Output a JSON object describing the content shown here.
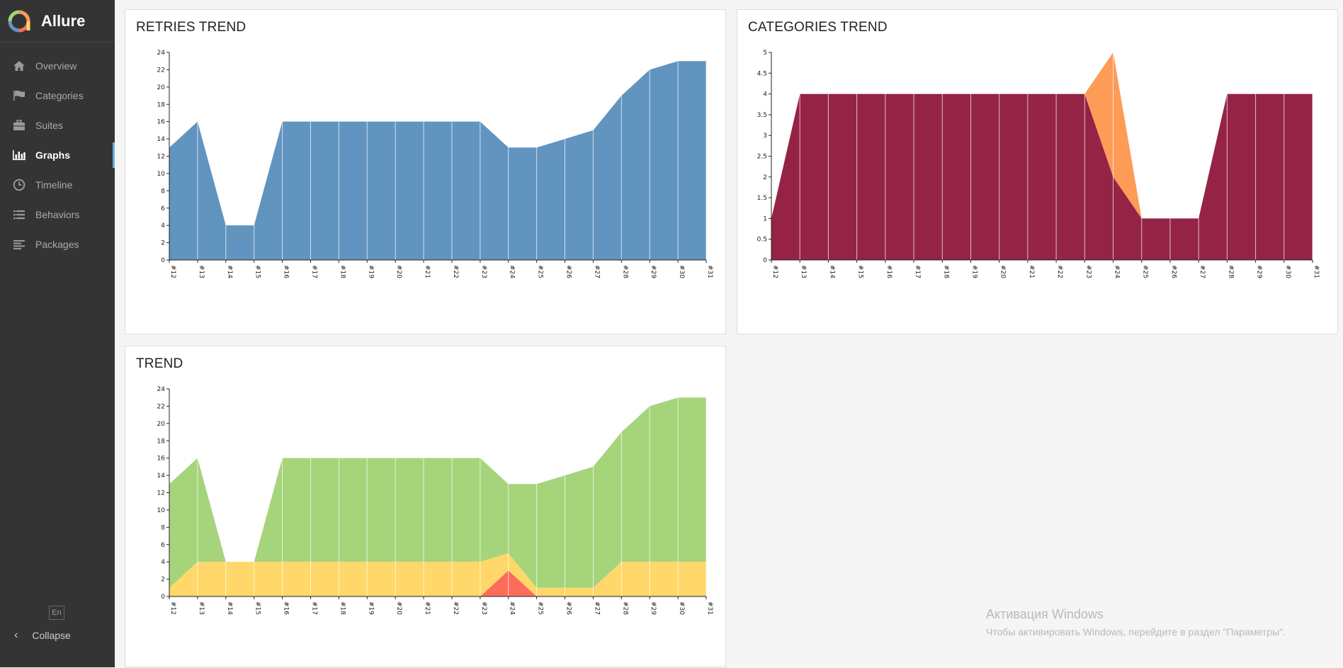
{
  "app": {
    "name": "Allure"
  },
  "sidebar": {
    "items": [
      {
        "label": "Overview",
        "icon": "home-icon"
      },
      {
        "label": "Categories",
        "icon": "flag-icon"
      },
      {
        "label": "Suites",
        "icon": "briefcase-icon"
      },
      {
        "label": "Graphs",
        "icon": "bar-chart-icon",
        "active": true
      },
      {
        "label": "Timeline",
        "icon": "clock-icon"
      },
      {
        "label": "Behaviors",
        "icon": "list-icon"
      },
      {
        "label": "Packages",
        "icon": "align-left-icon"
      }
    ],
    "language": "En",
    "collapse_label": "Collapse"
  },
  "colors": {
    "sidebar_bg": "#343434",
    "active_accent": "#6aaedc",
    "retries": "#6195c0",
    "category_maroon": "#952345",
    "category_orange": "#fd9b57",
    "passed": "#a6d47b",
    "broken": "#ffd76a",
    "failed": "#fb6c5b"
  },
  "watermark": {
    "title": "Активация Windows",
    "subtitle": "Чтобы активировать Windows, перейдите в раздел \"Параметры\"."
  },
  "chart_data": [
    {
      "type": "area",
      "title": "RETRIES TREND",
      "x": [
        "#12",
        "#13",
        "#14",
        "#15",
        "#16",
        "#17",
        "#18",
        "#19",
        "#20",
        "#21",
        "#22",
        "#23",
        "#24",
        "#25",
        "#26",
        "#27",
        "#28",
        "#29",
        "#30",
        "#31"
      ],
      "ylim": [
        0,
        24
      ],
      "yticks": [
        "0",
        "2",
        "4",
        "6",
        "8",
        "10",
        "12",
        "14",
        "16",
        "18",
        "20",
        "22",
        "24"
      ],
      "series": [
        {
          "values": [
            13,
            16,
            4,
            4,
            16,
            16,
            16,
            16,
            16,
            16,
            16,
            16,
            13,
            13,
            14,
            15,
            19,
            22,
            23,
            23
          ],
          "color": "#6195c0"
        }
      ]
    },
    {
      "type": "area",
      "title": "CATEGORIES TREND",
      "x": [
        "#12",
        "#13",
        "#14",
        "#15",
        "#16",
        "#17",
        "#18",
        "#19",
        "#20",
        "#21",
        "#22",
        "#23",
        "#24",
        "#25",
        "#26",
        "#27",
        "#28",
        "#29",
        "#30",
        "#31"
      ],
      "ylim": [
        0,
        5
      ],
      "yticks": [
        "0",
        "0.5",
        "1",
        "1.5",
        "2",
        "2.5",
        "3",
        "3.5",
        "4",
        "4.5",
        "5"
      ],
      "stacked": true,
      "series": [
        {
          "values": [
            1,
            4,
            4,
            4,
            4,
            4,
            4,
            4,
            4,
            4,
            4,
            4,
            2,
            1,
            1,
            1,
            4,
            4,
            4,
            4
          ],
          "color": "#952345"
        },
        {
          "values": [
            0,
            0,
            0,
            0,
            0,
            0,
            0,
            0,
            0,
            0,
            0,
            0,
            3,
            0,
            0,
            0,
            0,
            0,
            0,
            0
          ],
          "color": "#fd9b57"
        }
      ]
    },
    {
      "type": "area",
      "title": "TREND",
      "x": [
        "#12",
        "#13",
        "#14",
        "#15",
        "#16",
        "#17",
        "#18",
        "#19",
        "#20",
        "#21",
        "#22",
        "#23",
        "#24",
        "#25",
        "#26",
        "#27",
        "#28",
        "#29",
        "#30",
        "#31"
      ],
      "ylim": [
        0,
        24
      ],
      "yticks": [
        "0",
        "2",
        "4",
        "6",
        "8",
        "10",
        "12",
        "14",
        "16",
        "18",
        "20",
        "22",
        "24"
      ],
      "stacked": true,
      "series": [
        {
          "values": [
            0,
            0,
            0,
            0,
            0,
            0,
            0,
            0,
            0,
            0,
            0,
            0,
            3,
            0,
            0,
            0,
            0,
            0,
            0,
            0
          ],
          "color": "#fb6c5b"
        },
        {
          "values": [
            1,
            4,
            4,
            4,
            4,
            4,
            4,
            4,
            4,
            4,
            4,
            4,
            2,
            1,
            1,
            1,
            4,
            4,
            4,
            4
          ],
          "color": "#ffd76a"
        },
        {
          "values": [
            12,
            12,
            0,
            0,
            12,
            12,
            12,
            12,
            12,
            12,
            12,
            12,
            8,
            12,
            13,
            14,
            15,
            18,
            19,
            19
          ],
          "color": "#a6d47b"
        }
      ]
    }
  ]
}
